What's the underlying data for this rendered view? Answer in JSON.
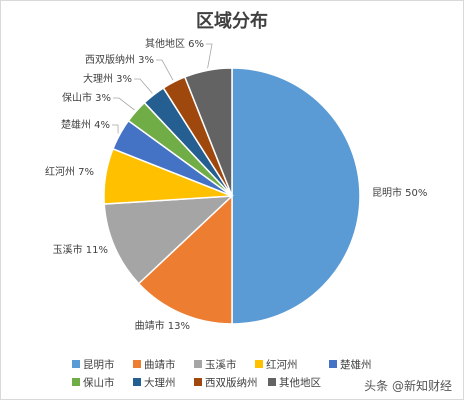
{
  "chart_data": {
    "type": "pie",
    "title": "区域分布",
    "categories": [
      "昆明市",
      "曲靖市",
      "玉溪市",
      "红河州",
      "楚雄州",
      "保山市",
      "大理州",
      "西双版纳州",
      "其他地区"
    ],
    "values": [
      50,
      13,
      11,
      7,
      4,
      3,
      3,
      3,
      6
    ],
    "labels": [
      "昆明市 50%",
      "曲靖市 13%",
      "玉溪市 11%",
      "红河州 7%",
      "楚雄州 4%",
      "保山市 3%",
      "大理州 3%",
      "西双版纳州 3%",
      "其他地区 6%"
    ],
    "colors": [
      "#5b9bd5",
      "#ed7d31",
      "#a5a5a5",
      "#ffc000",
      "#4472c4",
      "#70ad47",
      "#255e91",
      "#9e480e",
      "#636363"
    ],
    "legend_position": "bottom"
  },
  "watermark": "头条 @新知财经"
}
